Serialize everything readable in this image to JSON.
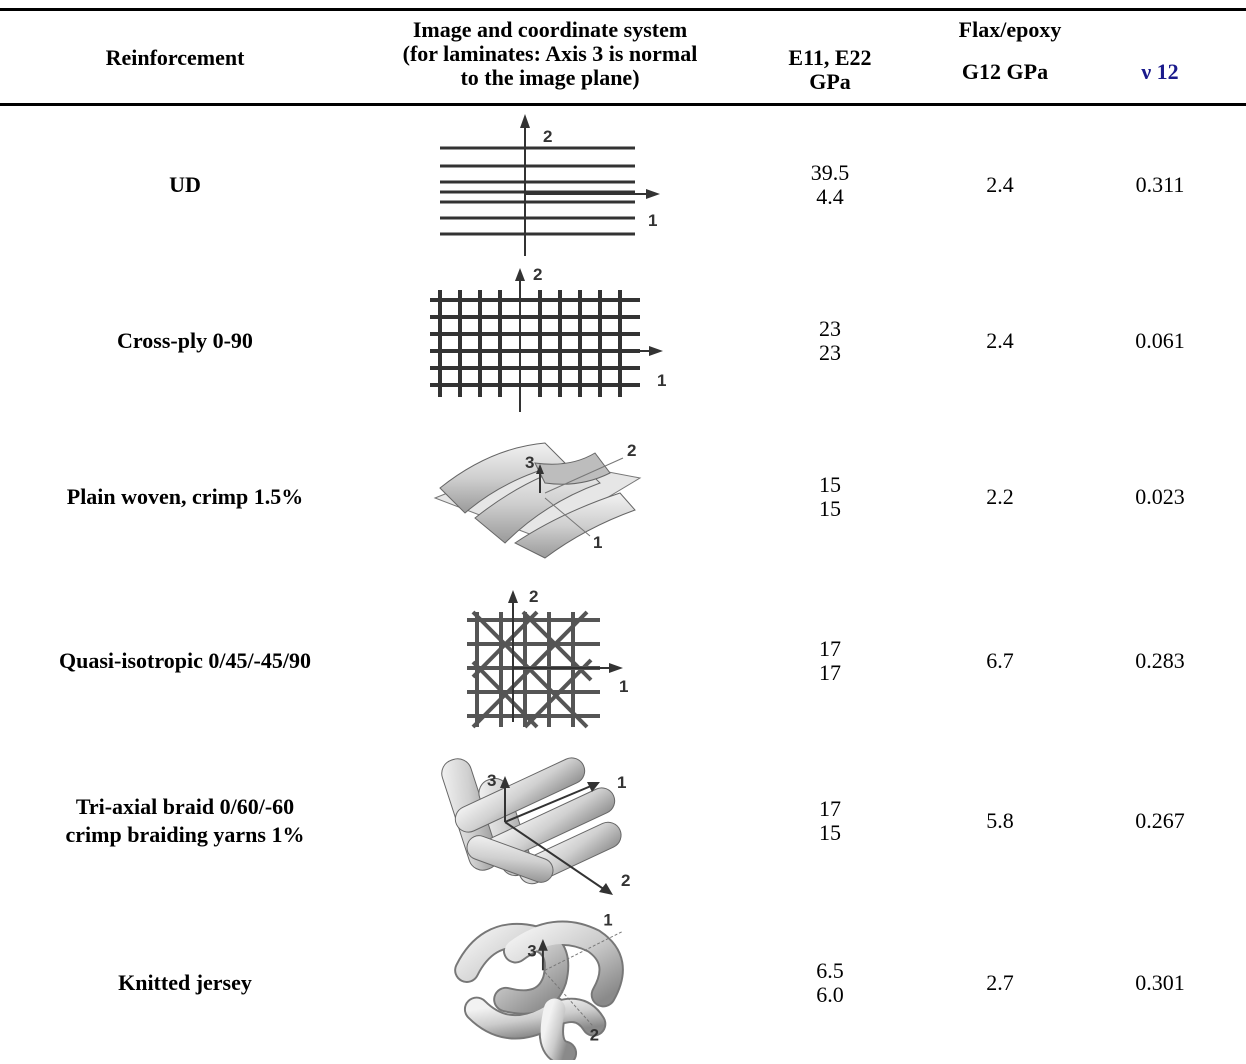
{
  "header": {
    "reinforcement": "Reinforcement",
    "image_line1": "Image and coordinate system",
    "image_line2": "(for laminates: Axis 3 is normal",
    "image_line3": "to the image plane)",
    "group": "Flax/epoxy",
    "e_line1": "E11, E22",
    "e_line2": "GPa",
    "g": "G12 GPa",
    "nu": "ν 12"
  },
  "rows": [
    {
      "name1": "UD",
      "name2": "",
      "e11": "39.5",
      "e22": "4.4",
      "g12": "2.4",
      "nu12": "0.311",
      "icon": "ud-fiber-diagram-icon",
      "axes": [
        "2",
        "1"
      ]
    },
    {
      "name1": "Cross-ply 0-90",
      "name2": "",
      "e11": "23",
      "e22": "23",
      "g12": "2.4",
      "nu12": "0.061",
      "icon": "cross-ply-grid-icon",
      "axes": [
        "2",
        "1"
      ]
    },
    {
      "name1": "Plain woven, crimp 1.5%",
      "name2": "",
      "e11": "15",
      "e22": "15",
      "g12": "2.2",
      "nu12": "0.023",
      "icon": "plain-woven-3d-icon",
      "axes": [
        "3",
        "2",
        "1"
      ]
    },
    {
      "name1": "Quasi-isotropic 0/45/-45/90",
      "name2": "",
      "e11": "17",
      "e22": "17",
      "g12": "6.7",
      "nu12": "0.283",
      "icon": "quasi-isotropic-grid-icon",
      "axes": [
        "2",
        "1"
      ]
    },
    {
      "name1": "Tri-axial braid 0/60/-60",
      "name2": "crimp braiding yarns 1%",
      "e11": "17",
      "e22": "15",
      "g12": "5.8",
      "nu12": "0.267",
      "icon": "triaxial-braid-3d-icon",
      "axes": [
        "3",
        "1",
        "2"
      ]
    },
    {
      "name1": "Knitted jersey",
      "name2": "",
      "e11": "6.5",
      "e22": "6.0",
      "g12": "2.7",
      "nu12": "0.301",
      "icon": "knitted-jersey-3d-icon",
      "axes": [
        "1",
        "3",
        "2"
      ]
    }
  ]
}
